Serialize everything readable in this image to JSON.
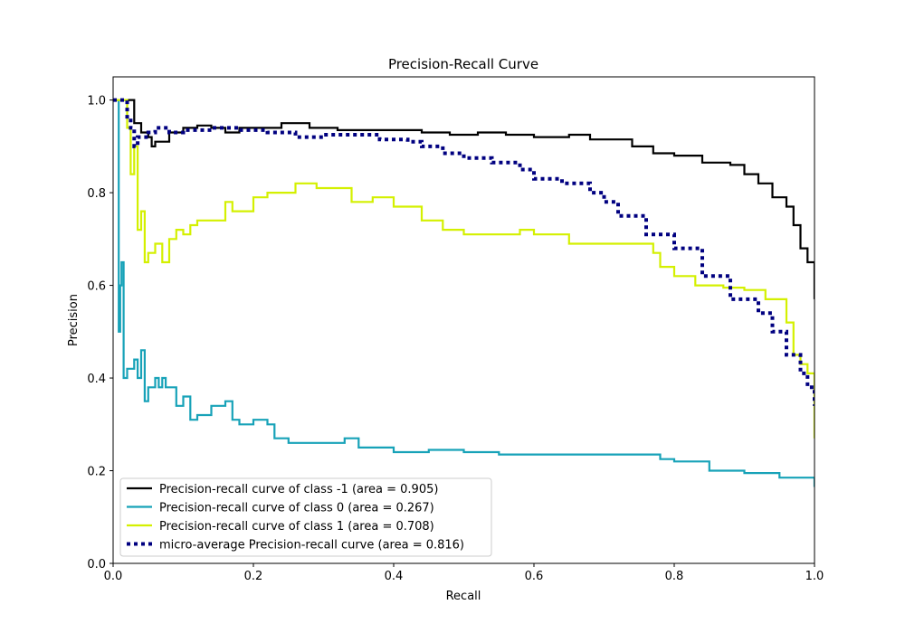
{
  "chart_data": {
    "type": "line",
    "title": "Precision-Recall Curve",
    "xlabel": "Recall",
    "ylabel": "Precision",
    "xlim": [
      0,
      1
    ],
    "ylim": [
      0,
      1.05
    ],
    "xticks": [
      "0.0",
      "0.2",
      "0.4",
      "0.6",
      "0.8",
      "1.0"
    ],
    "yticks": [
      "0.0",
      "0.2",
      "0.4",
      "0.6",
      "0.8",
      "1.0"
    ],
    "grid": false,
    "legend_position": "lower-left",
    "series": [
      {
        "name": "Precision-recall curve of class -1 (area = 0.905)",
        "color": "#000000",
        "style": "solid",
        "x": [
          0.0,
          0.005,
          0.01,
          0.02,
          0.03,
          0.035,
          0.04,
          0.05,
          0.055,
          0.06,
          0.08,
          0.1,
          0.12,
          0.14,
          0.16,
          0.18,
          0.2,
          0.24,
          0.28,
          0.32,
          0.36,
          0.4,
          0.44,
          0.48,
          0.52,
          0.56,
          0.6,
          0.65,
          0.68,
          0.72,
          0.74,
          0.77,
          0.8,
          0.84,
          0.88,
          0.9,
          0.92,
          0.94,
          0.96,
          0.97,
          0.98,
          0.99,
          1.0
        ],
        "y": [
          1.0,
          1.0,
          1.0,
          1.0,
          0.95,
          0.95,
          0.93,
          0.92,
          0.9,
          0.91,
          0.93,
          0.94,
          0.945,
          0.94,
          0.93,
          0.94,
          0.94,
          0.95,
          0.94,
          0.935,
          0.935,
          0.935,
          0.93,
          0.925,
          0.93,
          0.925,
          0.92,
          0.925,
          0.915,
          0.915,
          0.9,
          0.885,
          0.88,
          0.865,
          0.86,
          0.84,
          0.82,
          0.79,
          0.77,
          0.73,
          0.68,
          0.65,
          0.57
        ]
      },
      {
        "name": "Precision-recall curve of class 0 (area = 0.267)",
        "color": "#17a2b8",
        "style": "solid",
        "x": [
          0.0,
          0.005,
          0.008,
          0.01,
          0.012,
          0.015,
          0.02,
          0.03,
          0.035,
          0.04,
          0.045,
          0.05,
          0.06,
          0.065,
          0.07,
          0.075,
          0.08,
          0.09,
          0.1,
          0.11,
          0.12,
          0.14,
          0.16,
          0.17,
          0.18,
          0.2,
          0.22,
          0.23,
          0.25,
          0.28,
          0.33,
          0.35,
          0.4,
          0.45,
          0.5,
          0.55,
          0.6,
          0.65,
          0.7,
          0.75,
          0.78,
          0.8,
          0.85,
          0.9,
          0.95,
          1.0
        ],
        "y": [
          1.0,
          1.0,
          0.5,
          0.6,
          0.65,
          0.4,
          0.42,
          0.44,
          0.4,
          0.46,
          0.35,
          0.38,
          0.4,
          0.38,
          0.4,
          0.38,
          0.38,
          0.34,
          0.36,
          0.31,
          0.32,
          0.34,
          0.35,
          0.31,
          0.3,
          0.31,
          0.3,
          0.27,
          0.26,
          0.26,
          0.27,
          0.25,
          0.24,
          0.245,
          0.24,
          0.235,
          0.235,
          0.235,
          0.235,
          0.235,
          0.225,
          0.22,
          0.2,
          0.195,
          0.185,
          0.165
        ]
      },
      {
        "name": "Precision-recall curve of class 1 (area = 0.708)",
        "color": "#d4f000",
        "style": "solid",
        "x": [
          0.0,
          0.005,
          0.01,
          0.015,
          0.02,
          0.025,
          0.03,
          0.035,
          0.04,
          0.045,
          0.05,
          0.06,
          0.07,
          0.08,
          0.09,
          0.1,
          0.11,
          0.12,
          0.16,
          0.17,
          0.2,
          0.22,
          0.26,
          0.29,
          0.32,
          0.34,
          0.37,
          0.4,
          0.42,
          0.44,
          0.47,
          0.5,
          0.55,
          0.58,
          0.6,
          0.65,
          0.7,
          0.74,
          0.77,
          0.78,
          0.8,
          0.83,
          0.87,
          0.9,
          0.93,
          0.96,
          0.97,
          0.98,
          0.99,
          1.0
        ],
        "y": [
          1.0,
          1.0,
          1.0,
          1.0,
          0.94,
          0.84,
          0.9,
          0.72,
          0.76,
          0.65,
          0.67,
          0.69,
          0.65,
          0.7,
          0.72,
          0.71,
          0.73,
          0.74,
          0.78,
          0.76,
          0.79,
          0.8,
          0.82,
          0.81,
          0.81,
          0.78,
          0.79,
          0.77,
          0.77,
          0.74,
          0.72,
          0.71,
          0.71,
          0.72,
          0.71,
          0.69,
          0.69,
          0.69,
          0.67,
          0.64,
          0.62,
          0.6,
          0.595,
          0.59,
          0.57,
          0.52,
          0.45,
          0.43,
          0.41,
          0.27
        ]
      },
      {
        "name": "micro-average Precision-recall curve (area = 0.816)",
        "color": "#000080",
        "style": "dotted",
        "x": [
          0.0,
          0.02,
          0.025,
          0.03,
          0.035,
          0.05,
          0.06,
          0.08,
          0.1,
          0.14,
          0.18,
          0.22,
          0.26,
          0.3,
          0.34,
          0.38,
          0.42,
          0.44,
          0.47,
          0.5,
          0.54,
          0.58,
          0.6,
          0.64,
          0.68,
          0.7,
          0.72,
          0.76,
          0.8,
          0.84,
          0.88,
          0.92,
          0.94,
          0.96,
          0.98,
          0.99,
          1.0
        ],
        "y": [
          1.0,
          0.96,
          0.94,
          0.9,
          0.92,
          0.93,
          0.94,
          0.93,
          0.935,
          0.94,
          0.935,
          0.93,
          0.92,
          0.925,
          0.925,
          0.915,
          0.91,
          0.9,
          0.885,
          0.875,
          0.865,
          0.85,
          0.83,
          0.82,
          0.8,
          0.78,
          0.75,
          0.71,
          0.68,
          0.62,
          0.57,
          0.54,
          0.5,
          0.45,
          0.41,
          0.38,
          0.34
        ]
      }
    ]
  }
}
